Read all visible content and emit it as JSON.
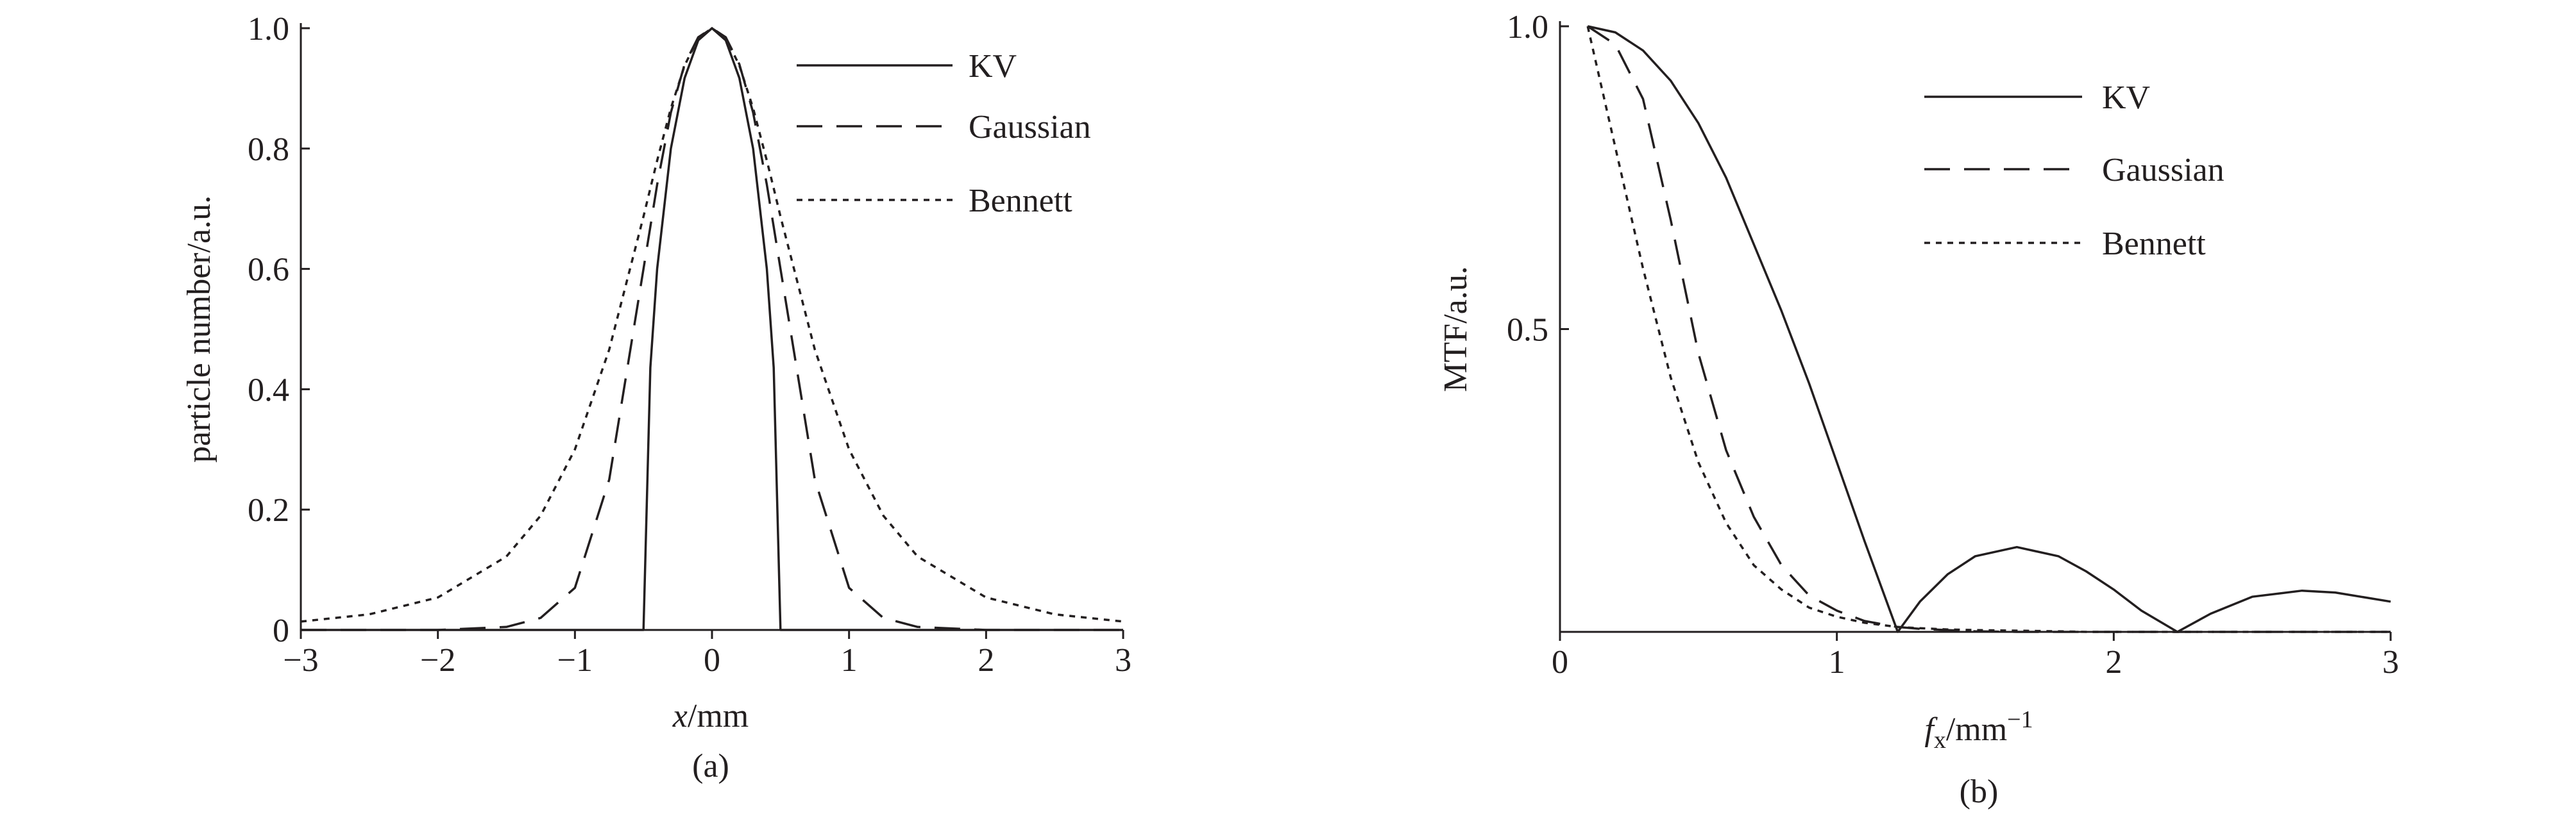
{
  "chart_data": [
    {
      "type": "line",
      "caption": "(a)",
      "xlabel": [
        "x",
        "/mm"
      ],
      "ylabel": "particle number/a.u.",
      "xlim": [
        -3,
        3
      ],
      "ylim": [
        0,
        1
      ],
      "xticks": [
        {
          "value": -3,
          "label": "−3"
        },
        {
          "value": -2,
          "label": "−2"
        },
        {
          "value": -1,
          "label": "−1"
        },
        0,
        1,
        2,
        3
      ],
      "yticks": [
        0,
        0.2,
        0.4,
        0.6,
        0.8,
        {
          "value": 1,
          "label": "1.0"
        }
      ],
      "x": [
        -3,
        -2.5,
        -2,
        -1.5,
        -1.25,
        -1,
        -0.75,
        -0.5,
        -0.45,
        -0.4,
        -0.3,
        -0.2,
        -0.1,
        0,
        0.1,
        0.2,
        0.3,
        0.4,
        0.45,
        0.5,
        0.75,
        1,
        1.25,
        1.5,
        2,
        2.5,
        3
      ],
      "series": [
        {
          "name": "KV",
          "color": "#231f20",
          "dash": "solid",
          "values": [
            0,
            0,
            0,
            0,
            0,
            0,
            0,
            0,
            0.436,
            0.6,
            0.8,
            0.917,
            0.98,
            1,
            0.98,
            0.917,
            0.8,
            0.6,
            0.436,
            0,
            0,
            0,
            0,
            0,
            0,
            0,
            0
          ]
        },
        {
          "name": "Gaussian",
          "color": "#231f20",
          "dash": "dashed",
          "values": [
            0,
            0,
            0,
            0.005,
            0.02,
            0.07,
            0.25,
            0.6,
            0.67,
            0.74,
            0.86,
            0.94,
            0.985,
            1,
            0.985,
            0.94,
            0.86,
            0.74,
            0.67,
            0.6,
            0.25,
            0.07,
            0.02,
            0.005,
            0,
            0,
            0
          ]
        },
        {
          "name": "Bennett",
          "color": "#231f20",
          "dash": "dotted",
          "values": [
            0.014,
            0.026,
            0.054,
            0.122,
            0.19,
            0.3,
            0.466,
            0.687,
            0.734,
            0.78,
            0.867,
            0.938,
            0.984,
            1,
            0.984,
            0.938,
            0.867,
            0.78,
            0.734,
            0.687,
            0.466,
            0.3,
            0.19,
            0.122,
            0.054,
            0.026,
            0.014
          ]
        }
      ]
    },
    {
      "type": "line",
      "caption": "(b)",
      "xlabel": [
        "f",
        "x",
        "/mm",
        "−1"
      ],
      "ylabel": "MTF/a.u.",
      "xlim": [
        0,
        3
      ],
      "ylim": [
        0,
        1
      ],
      "xticks": [
        0,
        1,
        2,
        3
      ],
      "yticks": [
        0.5,
        {
          "value": 1,
          "label": "1.0"
        }
      ],
      "x": [
        0.1,
        0.2,
        0.3,
        0.4,
        0.5,
        0.6,
        0.7,
        0.8,
        0.9,
        1.0,
        1.1,
        1.22,
        1.3,
        1.4,
        1.5,
        1.65,
        1.8,
        1.9,
        2.0,
        2.1,
        2.23,
        2.35,
        2.5,
        2.68,
        2.8,
        3.0
      ],
      "series": [
        {
          "name": "KV",
          "color": "#231f20",
          "dash": "solid",
          "values": [
            1,
            0.99,
            0.96,
            0.91,
            0.84,
            0.75,
            0.64,
            0.53,
            0.41,
            0.28,
            0.15,
            0,
            0.05,
            0.095,
            0.125,
            0.14,
            0.125,
            0.1,
            0.07,
            0.035,
            0,
            0.03,
            0.058,
            0.068,
            0.065,
            0.05
          ]
        },
        {
          "name": "Gaussian",
          "color": "#231f20",
          "dash": "dashed",
          "values": [
            1,
            0.97,
            0.88,
            0.68,
            0.46,
            0.3,
            0.19,
            0.11,
            0.06,
            0.035,
            0.018,
            0.008,
            0.005,
            0.003,
            0.001,
            0,
            0,
            0,
            0,
            0,
            0,
            0,
            0,
            0,
            0,
            0
          ]
        },
        {
          "name": "Bennett",
          "color": "#231f20",
          "dash": "dotted",
          "values": [
            1,
            0.8,
            0.6,
            0.42,
            0.28,
            0.18,
            0.11,
            0.07,
            0.04,
            0.025,
            0.015,
            0.008,
            0.006,
            0.004,
            0.003,
            0.002,
            0.001,
            0,
            0,
            0,
            0,
            0,
            0,
            0,
            0,
            0
          ]
        }
      ]
    }
  ]
}
